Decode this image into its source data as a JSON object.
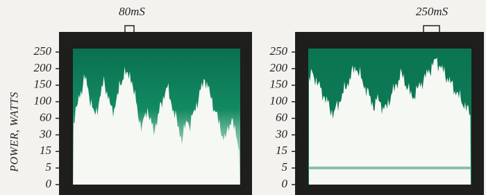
{
  "axis_label": "POWER, WATTS",
  "panels": [
    {
      "marker": "80mS",
      "scale_labels": [
        "250",
        "200",
        "150",
        "100",
        "60",
        "30",
        "15",
        "5",
        "0"
      ]
    },
    {
      "marker": "250mS",
      "scale_labels": [
        "250",
        "200",
        "150",
        "100",
        "60",
        "30",
        "15",
        "5",
        "0"
      ]
    }
  ]
}
